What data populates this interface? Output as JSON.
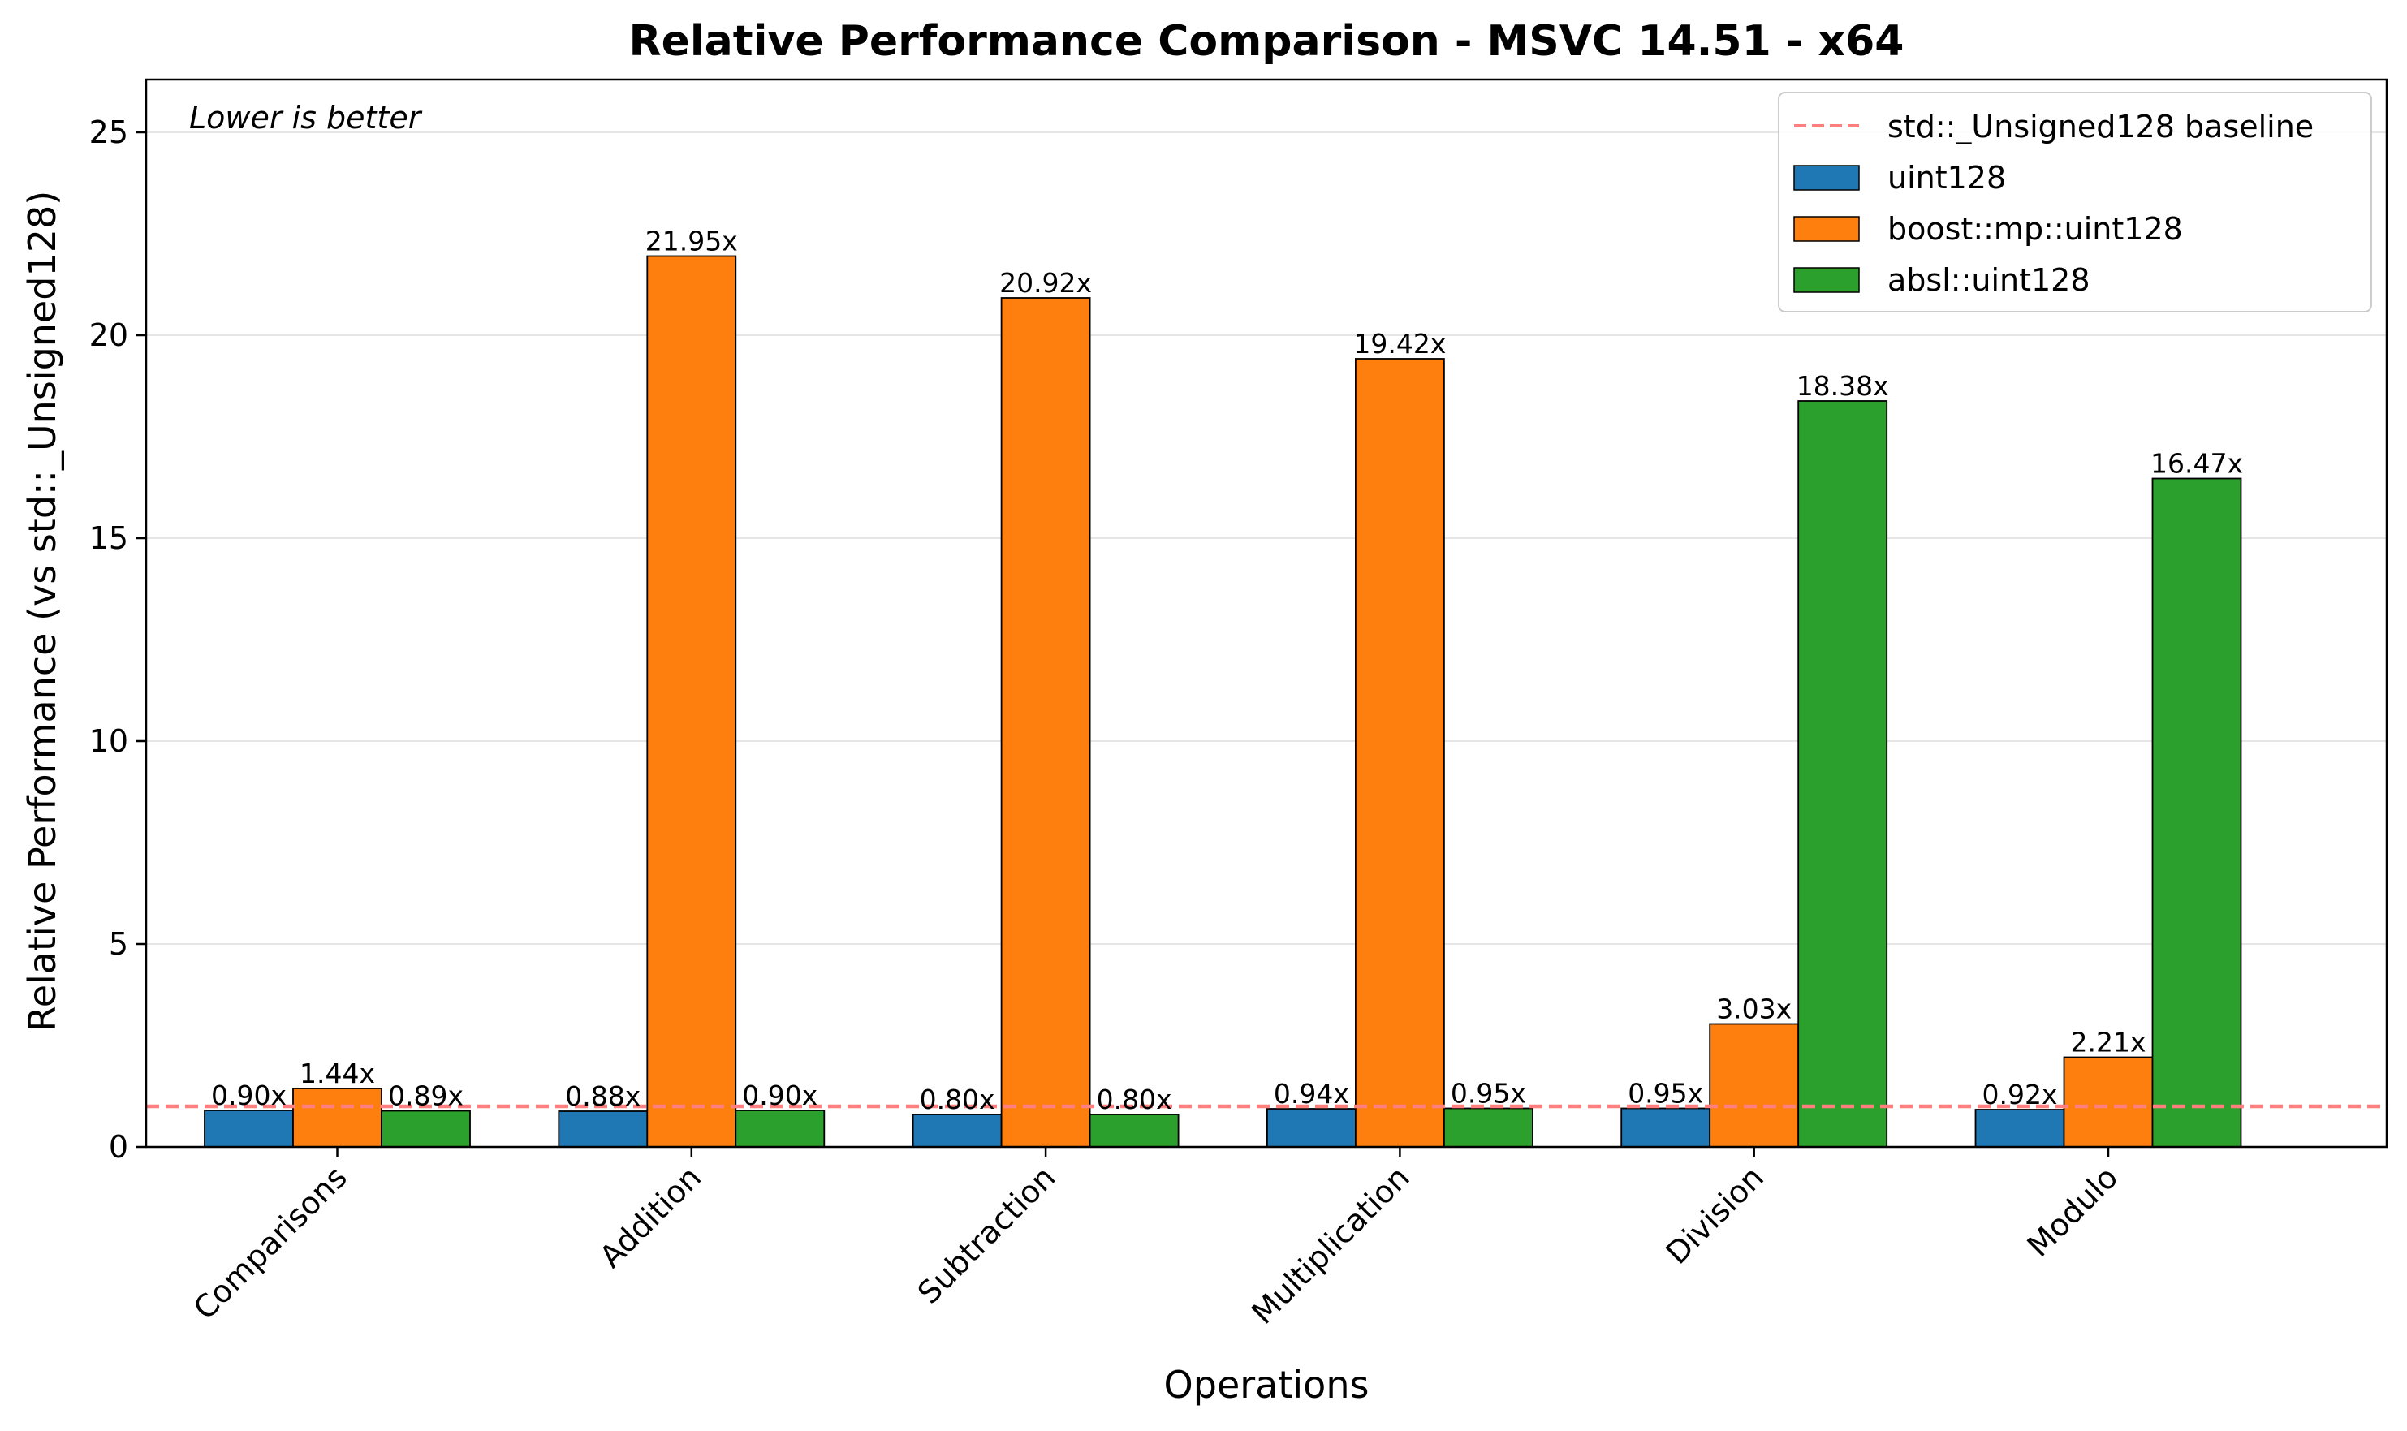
{
  "chart_data": {
    "type": "bar",
    "title": "Relative Performance Comparison - MSVC 14.51 - x64",
    "xlabel": "Operations",
    "ylabel": "Relative Performance (vs std::_Unsigned128)",
    "annotation": "Lower is better",
    "categories": [
      "Comparisons",
      "Addition",
      "Subtraction",
      "Multiplication",
      "Division",
      "Modulo"
    ],
    "series": [
      {
        "name": "uint128",
        "color": "#1f77b4",
        "values": [
          0.9,
          0.88,
          0.8,
          0.94,
          0.95,
          0.92
        ],
        "labels": [
          "0.90x",
          "0.88x",
          "0.80x",
          "0.94x",
          "0.95x",
          "0.92x"
        ]
      },
      {
        "name": "boost::mp::uint128",
        "color": "#ff7f0e",
        "values": [
          1.44,
          21.95,
          20.92,
          19.42,
          3.03,
          2.21
        ],
        "labels": [
          "1.44x",
          "21.95x",
          "20.92x",
          "19.42x",
          "3.03x",
          "2.21x"
        ]
      },
      {
        "name": "absl::uint128",
        "color": "#2ca02c",
        "values": [
          0.89,
          0.9,
          0.8,
          0.95,
          18.38,
          16.47
        ],
        "labels": [
          "0.89x",
          "0.90x",
          "0.80x",
          "0.95x",
          "18.38x",
          "16.47x"
        ]
      }
    ],
    "baseline": {
      "name": "std::_Unsigned128 baseline",
      "value": 1.0,
      "color": "#ff7f7f"
    },
    "ylim": [
      0,
      26.3
    ],
    "yticks": [
      0,
      5,
      10,
      15,
      20,
      25
    ],
    "ytick_labels": [
      "0",
      "5",
      "10",
      "15",
      "20",
      "25"
    ],
    "grid": "y",
    "legend_position": "top-right"
  }
}
